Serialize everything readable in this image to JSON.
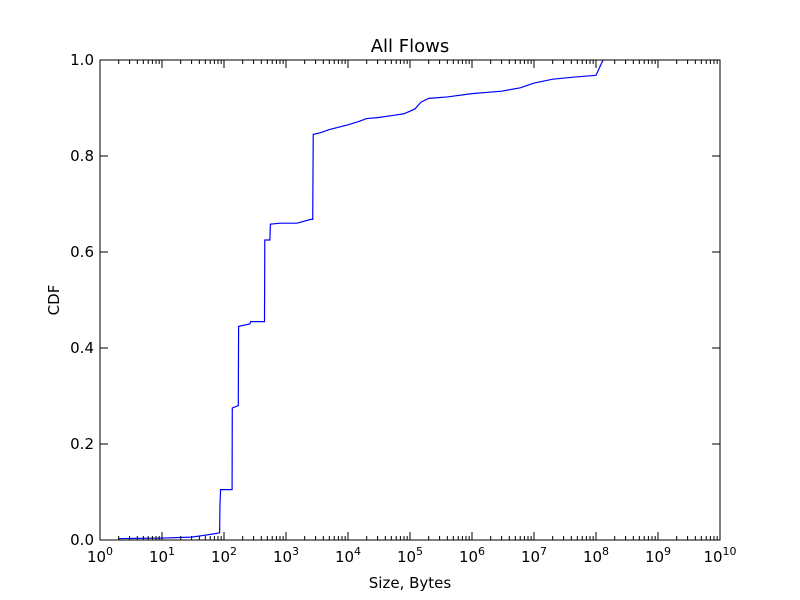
{
  "chart_data": {
    "type": "line",
    "title": "All Flows",
    "xlabel": "Size, Bytes",
    "ylabel": "CDF",
    "xscale": "log",
    "xlim": [
      1,
      10000000000
    ],
    "ylim": [
      0,
      1.0
    ],
    "grid": false,
    "legend": "none",
    "x_ticks": [
      {
        "value": 1,
        "base": "10",
        "exp": "0"
      },
      {
        "value": 10,
        "base": "10",
        "exp": "1"
      },
      {
        "value": 100,
        "base": "10",
        "exp": "2"
      },
      {
        "value": 1000,
        "base": "10",
        "exp": "3"
      },
      {
        "value": 10000,
        "base": "10",
        "exp": "4"
      },
      {
        "value": 100000,
        "base": "10",
        "exp": "5"
      },
      {
        "value": 1000000,
        "base": "10",
        "exp": "6"
      },
      {
        "value": 10000000,
        "base": "10",
        "exp": "7"
      },
      {
        "value": 100000000,
        "base": "10",
        "exp": "8"
      },
      {
        "value": 1000000000,
        "base": "10",
        "exp": "9"
      },
      {
        "value": 10000000000,
        "base": "10",
        "exp": "10"
      }
    ],
    "y_ticks": [
      {
        "value": 0,
        "label": "0.0"
      },
      {
        "value": 0.2,
        "label": "0.2"
      },
      {
        "value": 0.4,
        "label": "0.4"
      },
      {
        "value": 0.6,
        "label": "0.6"
      },
      {
        "value": 0.8,
        "label": "0.8"
      },
      {
        "value": 1.0,
        "label": "1.0"
      }
    ],
    "series": [
      {
        "color": "#0000ff",
        "points": [
          [
            2,
            0.003
          ],
          [
            10,
            0.004
          ],
          [
            30,
            0.006
          ],
          [
            50,
            0.01
          ],
          [
            70,
            0.013
          ],
          [
            85,
            0.015
          ],
          [
            86,
            0.07
          ],
          [
            88,
            0.105
          ],
          [
            135,
            0.105
          ],
          [
            136,
            0.275
          ],
          [
            170,
            0.28
          ],
          [
            172,
            0.445
          ],
          [
            260,
            0.45
          ],
          [
            270,
            0.455
          ],
          [
            450,
            0.455
          ],
          [
            455,
            0.625
          ],
          [
            550,
            0.625
          ],
          [
            560,
            0.658
          ],
          [
            800,
            0.66
          ],
          [
            1500,
            0.66
          ],
          [
            2500,
            0.668
          ],
          [
            2700,
            0.668
          ],
          [
            2710,
            0.71
          ],
          [
            2750,
            0.845
          ],
          [
            3500,
            0.848
          ],
          [
            5000,
            0.855
          ],
          [
            10000,
            0.865
          ],
          [
            15000,
            0.872
          ],
          [
            20000,
            0.878
          ],
          [
            30000,
            0.88
          ],
          [
            50000,
            0.884
          ],
          [
            80000,
            0.888
          ],
          [
            120000,
            0.898
          ],
          [
            150000,
            0.912
          ],
          [
            200000,
            0.92
          ],
          [
            400000,
            0.923
          ],
          [
            1000000,
            0.93
          ],
          [
            3000000,
            0.935
          ],
          [
            6000000,
            0.942
          ],
          [
            10000000,
            0.952
          ],
          [
            20000000,
            0.96
          ],
          [
            50000000,
            0.965
          ],
          [
            100000000,
            0.968
          ],
          [
            110000000,
            0.98
          ],
          [
            130000000,
            1.0
          ]
        ]
      }
    ]
  }
}
